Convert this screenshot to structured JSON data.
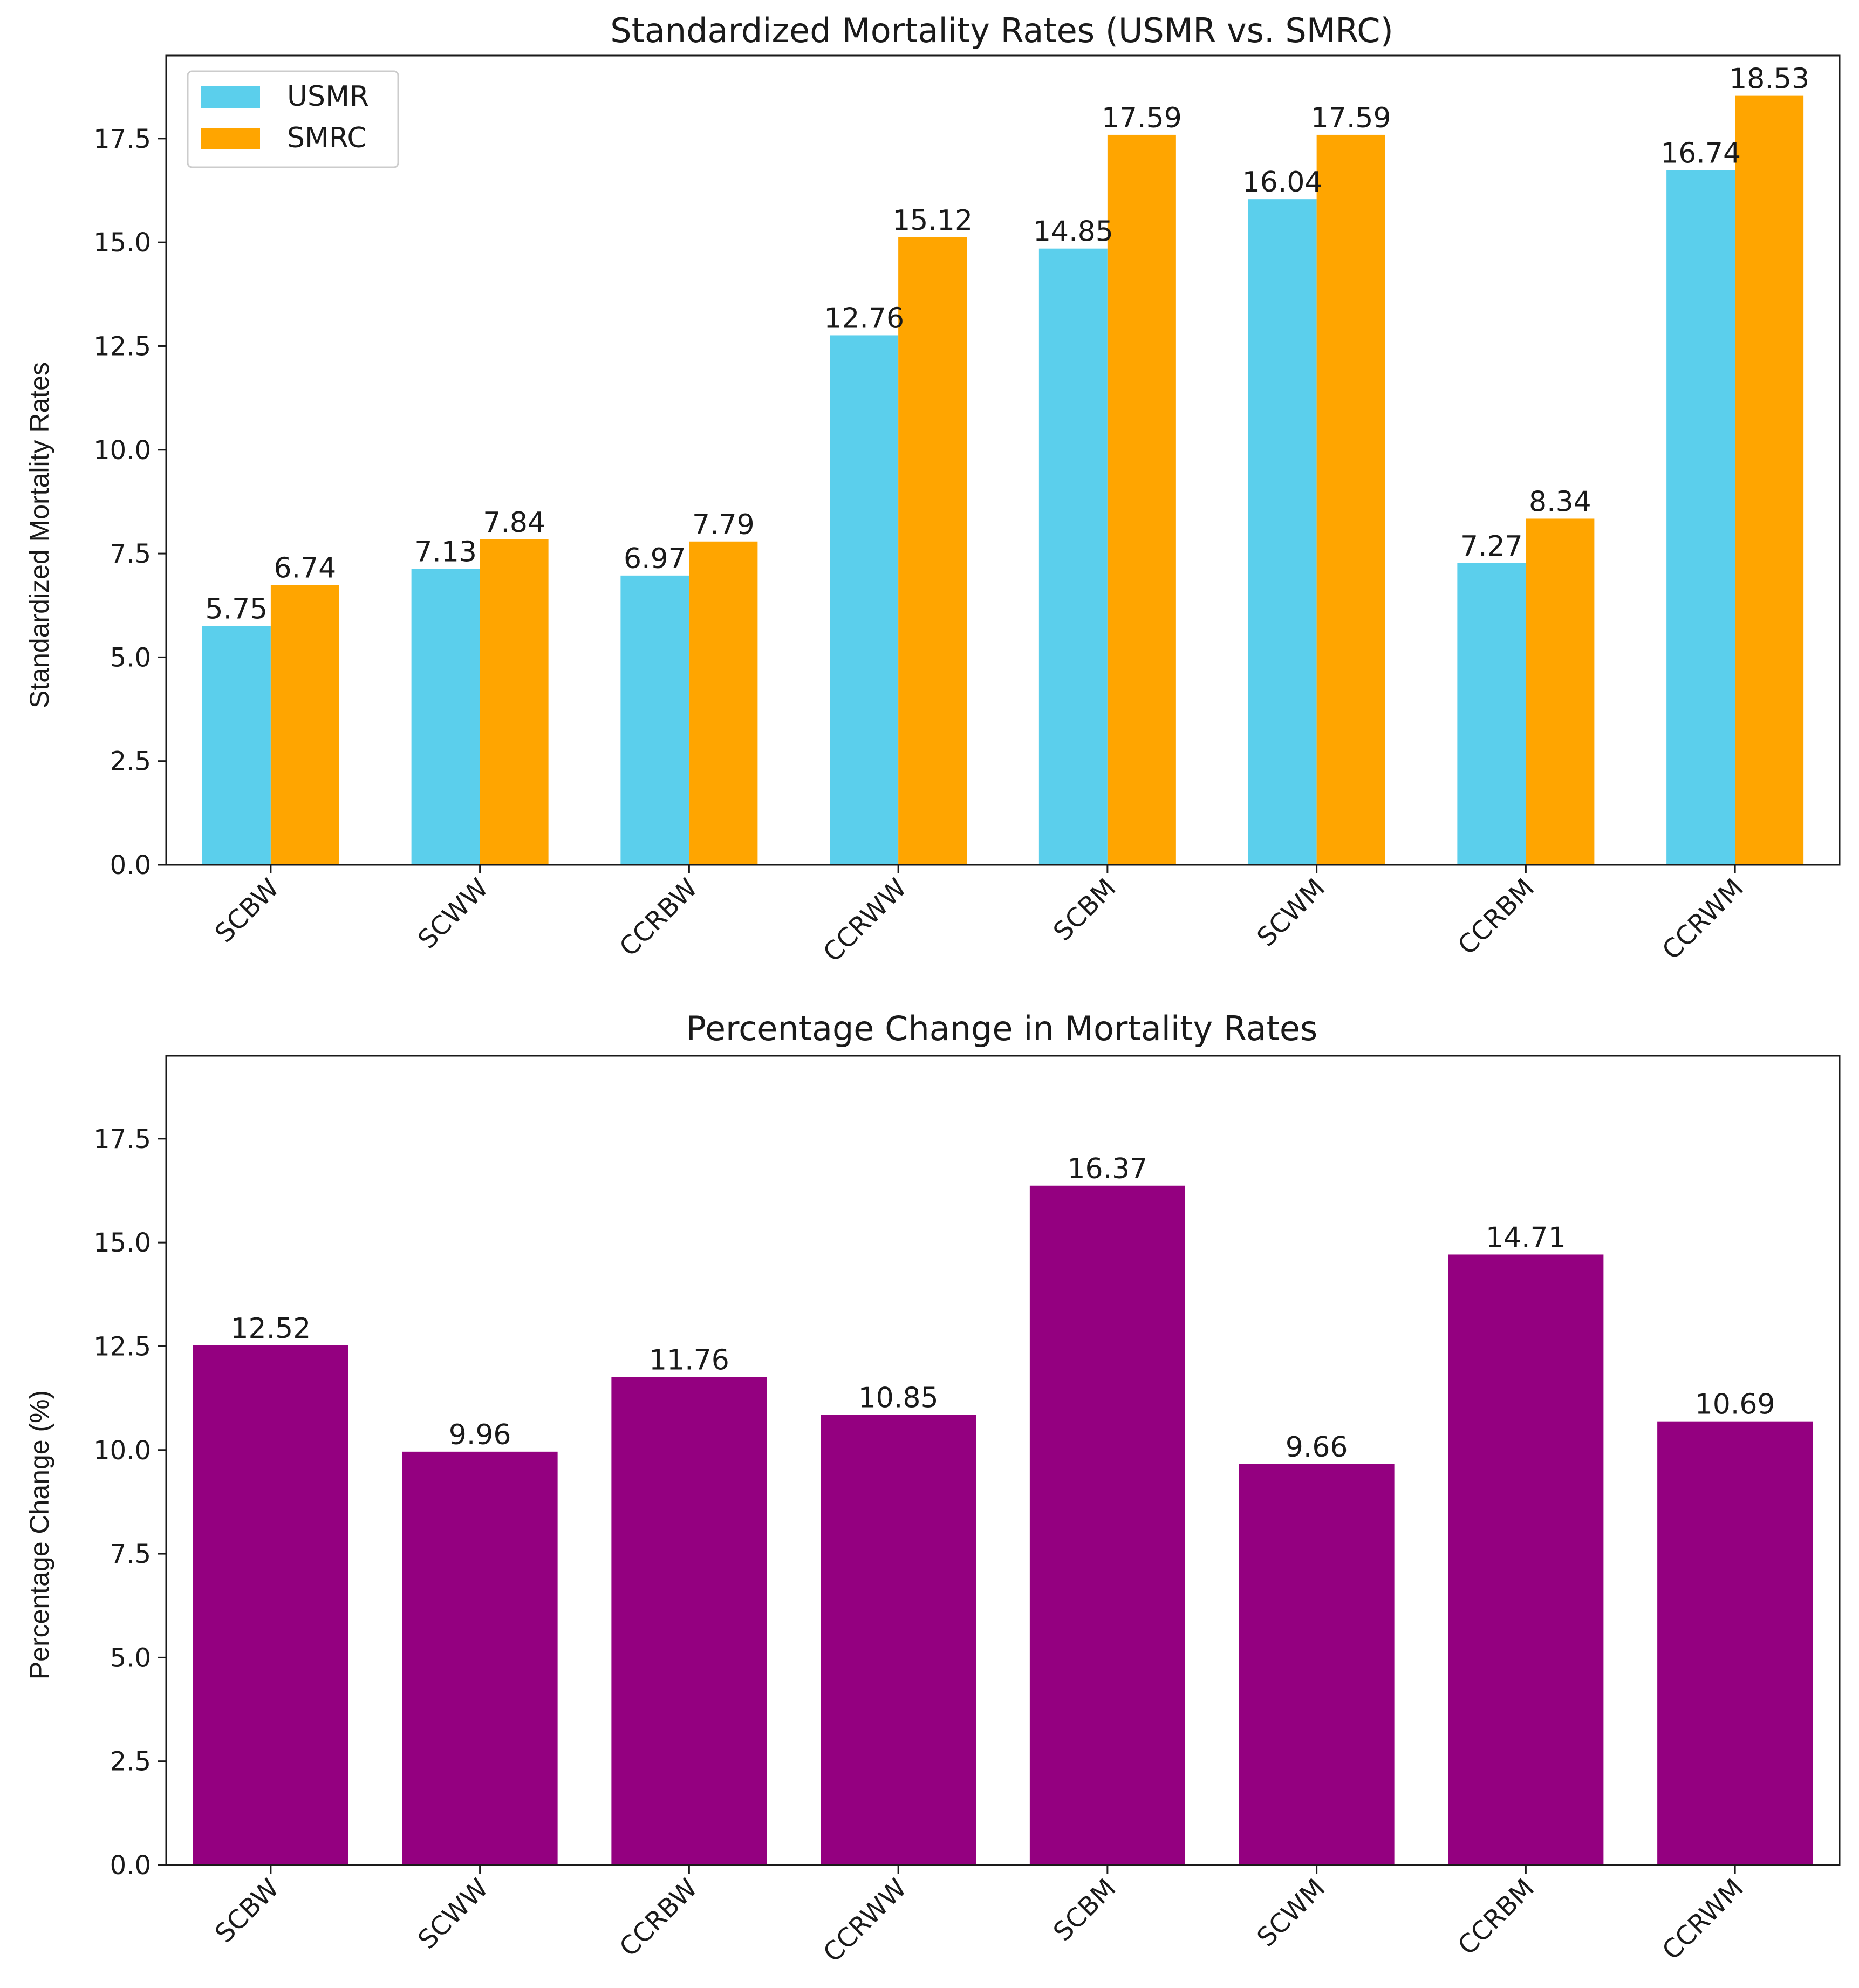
{
  "chart_data": [
    {
      "type": "bar",
      "title": "Standardized Mortality Rates (USMR vs. SMRC)",
      "xlabel": "",
      "ylabel": "Standardized Mortality Rates",
      "categories": [
        "SCBW",
        "SCWW",
        "CCRBW",
        "CCRWW",
        "SCBM",
        "SCWM",
        "CCRBM",
        "CCRWM"
      ],
      "series": [
        {
          "name": "USMR",
          "color": "#5bcfec",
          "values": [
            5.75,
            7.13,
            6.97,
            12.76,
            14.85,
            16.04,
            7.27,
            16.74
          ]
        },
        {
          "name": "SMRC",
          "color": "#ffa500",
          "values": [
            6.74,
            7.84,
            7.79,
            15.12,
            17.59,
            17.59,
            8.34,
            18.53
          ]
        }
      ],
      "ylim": [
        0,
        19.5
      ],
      "yticks": [
        "0.0",
        "2.5",
        "5.0",
        "7.5",
        "10.0",
        "12.5",
        "15.0",
        "17.5"
      ],
      "legend": "top-left",
      "grid": false
    },
    {
      "type": "bar",
      "title": "Percentage Change in Mortality Rates",
      "xlabel": "",
      "ylabel": "Percentage Change (%)",
      "categories": [
        "SCBW",
        "SCWW",
        "CCRBW",
        "CCRWW",
        "SCBM",
        "SCWM",
        "CCRBM",
        "CCRWM"
      ],
      "series": [
        {
          "color": "#940080",
          "values": [
            12.52,
            9.96,
            11.76,
            10.85,
            16.37,
            9.66,
            14.71,
            10.69
          ]
        }
      ],
      "ylim": [
        0,
        19.5
      ],
      "yticks": [
        "0.0",
        "2.5",
        "5.0",
        "7.5",
        "10.0",
        "12.5",
        "15.0",
        "17.5"
      ],
      "grid": false
    }
  ]
}
